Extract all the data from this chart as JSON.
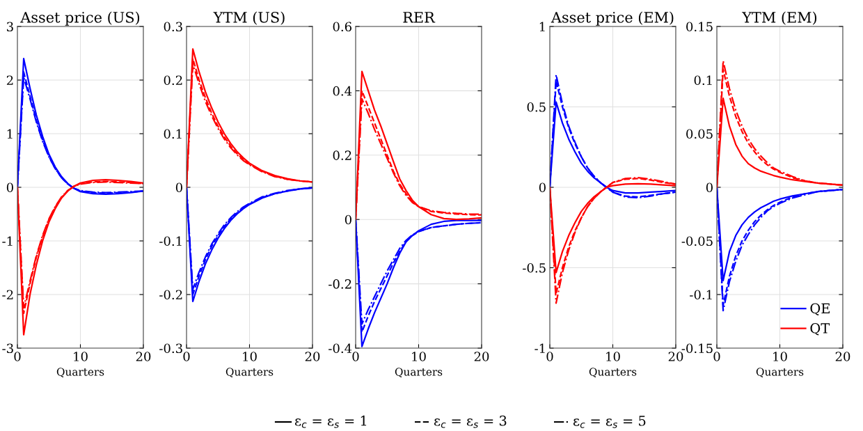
{
  "chart_data": [
    {
      "type": "line",
      "title": "Asset price (US)",
      "xlabel": "Quarters",
      "xlim": [
        0,
        20
      ],
      "xticks": [
        0,
        10,
        20
      ],
      "ylim": [
        -3,
        3
      ],
      "yticks": [
        -3,
        -2,
        -1,
        0,
        1,
        2,
        3
      ],
      "grid": true,
      "legend": false,
      "x": [
        0,
        1,
        2,
        3,
        4,
        5,
        6,
        7,
        8,
        9,
        10,
        12,
        14,
        16,
        18,
        20
      ],
      "series": [
        {
          "color": "#0000ff",
          "line_style": "solid",
          "values": [
            0,
            2.4,
            1.85,
            1.35,
            0.95,
            0.62,
            0.38,
            0.2,
            0.07,
            -0.02,
            -0.08,
            -0.12,
            -0.13,
            -0.12,
            -0.1,
            -0.07
          ]
        },
        {
          "color": "#0000ff",
          "line_style": "dashed",
          "values": [
            0,
            2.15,
            1.7,
            1.25,
            0.88,
            0.58,
            0.35,
            0.18,
            0.06,
            -0.02,
            -0.07,
            -0.1,
            -0.11,
            -0.1,
            -0.09,
            -0.07
          ]
        },
        {
          "color": "#0000ff",
          "line_style": "dashdot",
          "values": [
            0,
            2.05,
            1.65,
            1.22,
            0.86,
            0.57,
            0.35,
            0.18,
            0.06,
            -0.02,
            -0.06,
            -0.09,
            -0.1,
            -0.09,
            -0.08,
            -0.07
          ]
        },
        {
          "color": "#ff0000",
          "line_style": "solid",
          "values": [
            0,
            -2.75,
            -2.0,
            -1.45,
            -1.0,
            -0.65,
            -0.4,
            -0.2,
            -0.07,
            0.02,
            0.08,
            0.13,
            0.14,
            0.13,
            0.11,
            0.08
          ]
        },
        {
          "color": "#ff0000",
          "line_style": "dashed",
          "values": [
            0,
            -2.35,
            -1.8,
            -1.3,
            -0.92,
            -0.6,
            -0.37,
            -0.19,
            -0.06,
            0.02,
            0.07,
            0.1,
            0.11,
            0.1,
            0.09,
            0.07
          ]
        },
        {
          "color": "#ff0000",
          "line_style": "dashdot",
          "values": [
            0,
            -2.25,
            -1.75,
            -1.28,
            -0.9,
            -0.59,
            -0.36,
            -0.18,
            -0.06,
            0.02,
            0.06,
            0.09,
            0.1,
            0.09,
            0.08,
            0.07
          ]
        }
      ]
    },
    {
      "type": "line",
      "title": "YTM (US)",
      "xlabel": "Quarters",
      "xlim": [
        0,
        20
      ],
      "xticks": [
        0,
        10,
        20
      ],
      "ylim": [
        -0.3,
        0.3
      ],
      "yticks": [
        -0.3,
        -0.2,
        -0.1,
        0,
        0.1,
        0.2,
        0.3
      ],
      "grid": true,
      "legend": false,
      "x": [
        0,
        1,
        2,
        3,
        4,
        5,
        6,
        7,
        8,
        9,
        10,
        12,
        14,
        16,
        18,
        20
      ],
      "series": [
        {
          "color": "#0000ff",
          "line_style": "solid",
          "values": [
            0,
            -0.213,
            -0.175,
            -0.143,
            -0.117,
            -0.095,
            -0.077,
            -0.062,
            -0.05,
            -0.04,
            -0.032,
            -0.02,
            -0.012,
            -0.007,
            -0.003,
            -0.001
          ]
        },
        {
          "color": "#0000ff",
          "line_style": "dashed",
          "values": [
            0,
            -0.2,
            -0.165,
            -0.135,
            -0.11,
            -0.09,
            -0.073,
            -0.059,
            -0.048,
            -0.038,
            -0.031,
            -0.019,
            -0.012,
            -0.007,
            -0.003,
            -0.001
          ]
        },
        {
          "color": "#0000ff",
          "line_style": "dashdot",
          "values": [
            0,
            -0.19,
            -0.158,
            -0.13,
            -0.106,
            -0.087,
            -0.07,
            -0.057,
            -0.046,
            -0.037,
            -0.03,
            -0.018,
            -0.011,
            -0.006,
            -0.003,
            -0.001
          ]
        },
        {
          "color": "#ff0000",
          "line_style": "solid",
          "values": [
            0,
            0.258,
            0.215,
            0.178,
            0.148,
            0.122,
            0.1,
            0.082,
            0.067,
            0.055,
            0.045,
            0.031,
            0.022,
            0.016,
            0.012,
            0.01
          ]
        },
        {
          "color": "#ff0000",
          "line_style": "dashed",
          "values": [
            0,
            0.24,
            0.2,
            0.167,
            0.138,
            0.114,
            0.094,
            0.077,
            0.063,
            0.052,
            0.043,
            0.03,
            0.021,
            0.015,
            0.012,
            0.01
          ]
        },
        {
          "color": "#ff0000",
          "line_style": "dashdot",
          "values": [
            0,
            0.23,
            0.193,
            0.16,
            0.133,
            0.11,
            0.09,
            0.074,
            0.061,
            0.05,
            0.042,
            0.029,
            0.02,
            0.015,
            0.012,
            0.01
          ]
        }
      ]
    },
    {
      "type": "line",
      "title": "RER",
      "xlabel": "Quarters",
      "xlim": [
        0,
        20
      ],
      "xticks": [
        0,
        10,
        20
      ],
      "ylim": [
        -0.4,
        0.6
      ],
      "yticks": [
        -0.4,
        -0.2,
        0,
        0.2,
        0.4,
        0.6
      ],
      "grid": true,
      "legend": false,
      "x": [
        0,
        1,
        2,
        3,
        4,
        5,
        6,
        7,
        8,
        9,
        10,
        12,
        14,
        16,
        18,
        20
      ],
      "series": [
        {
          "color": "#0000ff",
          "line_style": "solid",
          "values": [
            0,
            -0.395,
            -0.34,
            -0.29,
            -0.245,
            -0.2,
            -0.15,
            -0.105,
            -0.07,
            -0.05,
            -0.035,
            -0.015,
            -0.006,
            -0.003,
            -0.003,
            -0.003
          ]
        },
        {
          "color": "#0000ff",
          "line_style": "dashed",
          "values": [
            0,
            -0.35,
            -0.3,
            -0.255,
            -0.215,
            -0.175,
            -0.135,
            -0.1,
            -0.068,
            -0.05,
            -0.038,
            -0.025,
            -0.02,
            -0.015,
            -0.012,
            -0.01
          ]
        },
        {
          "color": "#0000ff",
          "line_style": "dashdot",
          "values": [
            0,
            -0.325,
            -0.28,
            -0.24,
            -0.2,
            -0.16,
            -0.125,
            -0.09,
            -0.065,
            -0.048,
            -0.037,
            -0.025,
            -0.02,
            -0.015,
            -0.012,
            -0.01
          ]
        },
        {
          "color": "#ff0000",
          "line_style": "solid",
          "values": [
            0,
            0.46,
            0.4,
            0.34,
            0.29,
            0.235,
            0.18,
            0.126,
            0.09,
            0.06,
            0.04,
            0.015,
            0.003,
            0.0,
            0.002,
            0.005
          ]
        },
        {
          "color": "#ff0000",
          "line_style": "dashed",
          "values": [
            0,
            0.4,
            0.35,
            0.3,
            0.25,
            0.2,
            0.15,
            0.11,
            0.08,
            0.055,
            0.04,
            0.025,
            0.02,
            0.017,
            0.015,
            0.014
          ]
        },
        {
          "color": "#ff0000",
          "line_style": "dashdot",
          "values": [
            0,
            0.375,
            0.33,
            0.28,
            0.235,
            0.19,
            0.145,
            0.105,
            0.075,
            0.053,
            0.04,
            0.027,
            0.022,
            0.019,
            0.017,
            0.016
          ]
        }
      ]
    },
    {
      "type": "line",
      "title": "Asset price (EM)",
      "xlabel": "Quarters",
      "xlim": [
        0,
        20
      ],
      "xticks": [
        0,
        10,
        20
      ],
      "ylim": [
        -1,
        1
      ],
      "yticks": [
        -1,
        -0.5,
        0,
        0.5,
        1
      ],
      "grid": true,
      "legend": false,
      "x": [
        0,
        1,
        2,
        3,
        4,
        5,
        6,
        7,
        8,
        9,
        10,
        12,
        14,
        16,
        18,
        20
      ],
      "series": [
        {
          "color": "#0000ff",
          "line_style": "solid",
          "values": [
            0,
            0.53,
            0.4,
            0.3,
            0.22,
            0.15,
            0.1,
            0.06,
            0.03,
            0.0,
            -0.02,
            -0.035,
            -0.035,
            -0.03,
            -0.025,
            -0.02
          ]
        },
        {
          "color": "#0000ff",
          "line_style": "dashed",
          "values": [
            0,
            0.66,
            0.5,
            0.37,
            0.27,
            0.19,
            0.12,
            0.07,
            0.03,
            0.0,
            -0.03,
            -0.055,
            -0.06,
            -0.05,
            -0.04,
            -0.03
          ]
        },
        {
          "color": "#0000ff",
          "line_style": "dashdot",
          "values": [
            0,
            0.7,
            0.52,
            0.38,
            0.28,
            0.19,
            0.12,
            0.07,
            0.03,
            0.0,
            -0.03,
            -0.06,
            -0.065,
            -0.055,
            -0.04,
            -0.03
          ]
        },
        {
          "color": "#ff0000",
          "line_style": "solid",
          "values": [
            0,
            -0.53,
            -0.4,
            -0.3,
            -0.22,
            -0.15,
            -0.1,
            -0.06,
            -0.03,
            0.0,
            0.01,
            0.02,
            0.022,
            0.02,
            0.015,
            0.01
          ]
        },
        {
          "color": "#ff0000",
          "line_style": "dashed",
          "values": [
            0,
            -0.66,
            -0.5,
            -0.37,
            -0.27,
            -0.19,
            -0.12,
            -0.07,
            -0.03,
            0.0,
            0.03,
            0.05,
            0.055,
            0.045,
            0.03,
            0.02
          ]
        },
        {
          "color": "#ff0000",
          "line_style": "dashdot",
          "values": [
            0,
            -0.72,
            -0.53,
            -0.39,
            -0.28,
            -0.19,
            -0.12,
            -0.07,
            -0.03,
            0.0,
            0.03,
            0.055,
            0.06,
            0.05,
            0.035,
            0.02
          ]
        }
      ]
    },
    {
      "type": "line",
      "title": "YTM (EM)",
      "xlabel": "Quarters",
      "xlim": [
        0,
        20
      ],
      "xticks": [
        0,
        10,
        20
      ],
      "ylim": [
        -0.15,
        0.15
      ],
      "yticks": [
        -0.15,
        -0.1,
        -0.05,
        0,
        0.05,
        0.1,
        0.15
      ],
      "grid": true,
      "legend": "bottom right",
      "annotations": [
        "ε$_{c}$ = ε$_{s}$ = 1",
        "ε$_{c}$ = ε$_{s}$ = 3",
        "ε$_{c}$ = ε$_{s}$ = 5"
      ],
      "x": [
        0,
        1,
        2,
        3,
        4,
        5,
        6,
        7,
        8,
        9,
        10,
        12,
        14,
        16,
        18,
        20
      ],
      "series": [
        {
          "name": "QE",
          "color": "#0000ff",
          "line_style": "solid",
          "values": [
            0,
            -0.087,
            -0.06,
            -0.045,
            -0.035,
            -0.028,
            -0.023,
            -0.019,
            -0.016,
            -0.013,
            -0.011,
            -0.008,
            -0.006,
            -0.004,
            -0.003,
            -0.002
          ]
        },
        {
          "color": "#0000ff",
          "line_style": "dashed",
          "values": [
            0,
            -0.11,
            -0.083,
            -0.064,
            -0.05,
            -0.04,
            -0.032,
            -0.026,
            -0.021,
            -0.017,
            -0.014,
            -0.009,
            -0.006,
            -0.004,
            -0.003,
            -0.002
          ]
        },
        {
          "color": "#0000ff",
          "line_style": "dashdot",
          "values": [
            0,
            -0.115,
            -0.088,
            -0.069,
            -0.054,
            -0.044,
            -0.035,
            -0.028,
            -0.022,
            -0.018,
            -0.015,
            -0.01,
            -0.007,
            -0.004,
            -0.003,
            -0.002
          ]
        },
        {
          "name": "QT",
          "color": "#ff0000",
          "line_style": "solid",
          "values": [
            0,
            0.083,
            0.057,
            0.04,
            0.029,
            0.022,
            0.018,
            0.015,
            0.013,
            0.011,
            0.0095,
            0.007,
            0.0055,
            0.004,
            0.003,
            0.002
          ]
        },
        {
          "color": "#ff0000",
          "line_style": "dashed",
          "values": [
            0,
            0.11,
            0.085,
            0.066,
            0.052,
            0.041,
            0.033,
            0.026,
            0.021,
            0.017,
            0.014,
            0.009,
            0.006,
            0.004,
            0.003,
            0.002
          ]
        },
        {
          "color": "#ff0000",
          "line_style": "dashdot",
          "values": [
            0,
            0.118,
            0.092,
            0.072,
            0.057,
            0.045,
            0.036,
            0.029,
            0.023,
            0.018,
            0.015,
            0.01,
            0.006,
            0.004,
            0.003,
            0.002
          ]
        }
      ]
    }
  ]
}
